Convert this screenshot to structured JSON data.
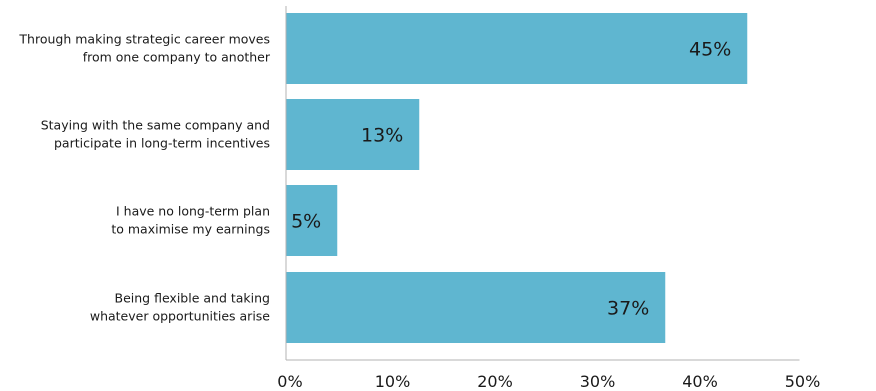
{
  "chart_data": {
    "type": "bar",
    "orientation": "horizontal",
    "categories": [
      [
        "Through making strategic career moves",
        "from one company to another"
      ],
      [
        "Staying with the same company and",
        "participate in long-term incentives"
      ],
      [
        "I have no long-term plan",
        "to maximise my earnings"
      ],
      [
        "Being flexible and taking",
        "whatever opportunities arise"
      ]
    ],
    "values": [
      45,
      13,
      5,
      37
    ],
    "value_labels": [
      "45%",
      "13%",
      "5%",
      "37%"
    ],
    "xlim": [
      0,
      50
    ],
    "ticks": [
      0,
      10,
      20,
      30,
      40,
      50
    ],
    "tick_labels": [
      "0%",
      "10%",
      "20%",
      "30%",
      "40%",
      "50%"
    ],
    "title": "",
    "xlabel": "",
    "ylabel": "",
    "grid": false,
    "legend": "none",
    "colors": {
      "bar": "#5fb6d0",
      "axis": "#b3b3b3",
      "text": "#1a1a1a"
    }
  }
}
